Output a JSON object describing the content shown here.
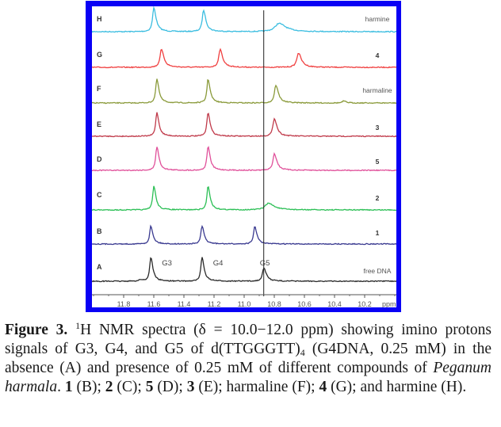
{
  "chart_data": {
    "type": "line",
    "title": "",
    "xlabel": "ppm",
    "ylabel": "",
    "xlim": [
      12.0,
      10.0
    ],
    "x_reversed": true,
    "x_ticks": [
      11.8,
      11.6,
      11.4,
      11.2,
      11.0,
      10.8,
      10.6,
      10.4,
      10.2
    ],
    "x_tick_labels": [
      "11.8",
      "11.6",
      "11.4",
      "11.2",
      "11.0",
      "10.8",
      "10.6",
      "10.4",
      "10.2"
    ],
    "reference_line_ppm": 10.87,
    "grid": false,
    "legend": "none",
    "peak_annotations": [
      {
        "label": "G3",
        "ppm": 11.62
      },
      {
        "label": "G4",
        "ppm": 11.28
      },
      {
        "label": "G5",
        "ppm": 10.87
      }
    ],
    "series": [
      {
        "name": "H",
        "label": "harmine",
        "label_bold": false,
        "color": "#3bbde0",
        "peaks": [
          {
            "ppm": 11.6,
            "height": 1.0,
            "width": 0.01
          },
          {
            "ppm": 11.27,
            "height": 0.9,
            "width": 0.01
          },
          {
            "ppm": 10.77,
            "height": 0.35,
            "width": 0.03
          }
        ]
      },
      {
        "name": "G",
        "label": "4",
        "label_bold": true,
        "color": "#f04040",
        "peaks": [
          {
            "ppm": 11.55,
            "height": 0.75,
            "width": 0.011
          },
          {
            "ppm": 11.16,
            "height": 0.75,
            "width": 0.011
          },
          {
            "ppm": 10.64,
            "height": 0.6,
            "width": 0.013
          }
        ]
      },
      {
        "name": "F",
        "label": "harmaline",
        "label_bold": false,
        "color": "#8a9a3a",
        "peaks": [
          {
            "ppm": 11.58,
            "height": 1.0,
            "width": 0.009
          },
          {
            "ppm": 11.24,
            "height": 1.0,
            "width": 0.009
          },
          {
            "ppm": 10.79,
            "height": 0.75,
            "width": 0.011
          },
          {
            "ppm": 10.34,
            "height": 0.08,
            "width": 0.01
          }
        ]
      },
      {
        "name": "E",
        "label": "3",
        "label_bold": true,
        "color": "#c03a4a",
        "peaks": [
          {
            "ppm": 11.58,
            "height": 1.0,
            "width": 0.009
          },
          {
            "ppm": 11.24,
            "height": 1.0,
            "width": 0.009
          },
          {
            "ppm": 10.8,
            "height": 0.75,
            "width": 0.011
          }
        ]
      },
      {
        "name": "D",
        "label": "5",
        "label_bold": true,
        "color": "#e0509a",
        "peaks": [
          {
            "ppm": 11.58,
            "height": 1.0,
            "width": 0.009
          },
          {
            "ppm": 11.24,
            "height": 1.0,
            "width": 0.009
          },
          {
            "ppm": 10.8,
            "height": 0.7,
            "width": 0.011
          }
        ]
      },
      {
        "name": "C",
        "label": "2",
        "label_bold": true,
        "color": "#2bbf55",
        "peaks": [
          {
            "ppm": 11.6,
            "height": 1.0,
            "width": 0.009
          },
          {
            "ppm": 11.24,
            "height": 1.0,
            "width": 0.009
          },
          {
            "ppm": 10.84,
            "height": 0.28,
            "width": 0.025
          }
        ]
      },
      {
        "name": "B",
        "label": "1",
        "label_bold": true,
        "color": "#3a3a90",
        "peaks": [
          {
            "ppm": 11.62,
            "height": 0.75,
            "width": 0.009
          },
          {
            "ppm": 11.28,
            "height": 0.75,
            "width": 0.009
          },
          {
            "ppm": 10.93,
            "height": 0.75,
            "width": 0.009
          }
        ]
      },
      {
        "name": "A",
        "label": "free DNA",
        "label_bold": false,
        "color": "#2a2a2a",
        "peaks": [
          {
            "ppm": 11.62,
            "height": 1.0,
            "width": 0.009
          },
          {
            "ppm": 11.28,
            "height": 1.0,
            "width": 0.009
          },
          {
            "ppm": 10.87,
            "height": 0.55,
            "width": 0.011
          },
          {
            "ppm": 11.69,
            "height": 0.06,
            "width": 0.012
          }
        ]
      }
    ]
  },
  "caption": {
    "figure_label": "Figure 3.",
    "sup_1": "1",
    "part_1": "H NMR spectra (δ = 10.0−12.0 ppm) showing imino protons signals of G3, G4, and G5 of d(TTGGGTT)",
    "sub_4": "4",
    "part_2": " (G4DNA, 0.25 mM) in the absence (A) and presence of 0.25 mM of different compounds of ",
    "species": "Peganum harmala",
    "part_3": ". ",
    "c1": "1",
    "t1": " (B); ",
    "c2": "2",
    "t2": " (C); ",
    "c5": "5",
    "t5": " (D); ",
    "c3": "3",
    "t3": " (E); harmaline (F); ",
    "c4": "4",
    "t4": " (G); and harmine (H)."
  }
}
